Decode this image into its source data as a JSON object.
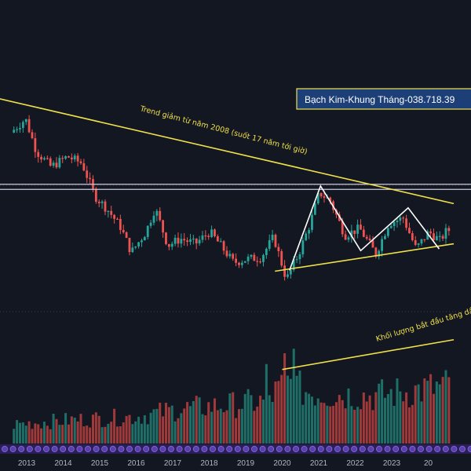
{
  "chart_data": {
    "type": "candlestick",
    "title": "Bạch Kim-Khung Tháng-038.718.39",
    "x_tick_labels": [
      "2013",
      "2014",
      "2015",
      "2016",
      "2017",
      "2018",
      "2019",
      "2020",
      "2021",
      "2022",
      "2023",
      "20"
    ],
    "annotations": {
      "downtrend": "Trend giảm từ năm 2008 (suốt 17 năm tới giờ)",
      "volume": "Khối lượng bắt đầu tăng dầ"
    },
    "ylim": [
      520,
      1850
    ],
    "grid": false,
    "colors": {
      "background": "#131722",
      "up": "#26a69a",
      "down": "#ef5350",
      "volume_up": "#1e6f68",
      "volume_down": "#a03a3a",
      "trendline": "#f0e04a",
      "pattern": "#ffffff",
      "support_lines": "#c9cbe0",
      "title_border": "#f0e04a",
      "title_bg": "#1c3f78"
    },
    "price_path": [
      {
        "year": 2012.65,
        "price": 1580
      },
      {
        "year": 2013.05,
        "price": 1660
      },
      {
        "year": 2013.35,
        "price": 1470
      },
      {
        "year": 2013.75,
        "price": 1380
      },
      {
        "year": 2014.2,
        "price": 1440
      },
      {
        "year": 2014.6,
        "price": 1400
      },
      {
        "year": 2014.95,
        "price": 1210
      },
      {
        "year": 2015.3,
        "price": 1130
      },
      {
        "year": 2015.65,
        "price": 1030
      },
      {
        "year": 2015.95,
        "price": 880
      },
      {
        "year": 2016.35,
        "price": 1000
      },
      {
        "year": 2016.6,
        "price": 1140
      },
      {
        "year": 2016.95,
        "price": 920
      },
      {
        "year": 2017.3,
        "price": 960
      },
      {
        "year": 2017.7,
        "price": 930
      },
      {
        "year": 2018.1,
        "price": 1000
      },
      {
        "year": 2018.4,
        "price": 920
      },
      {
        "year": 2018.75,
        "price": 820
      },
      {
        "year": 2019.1,
        "price": 840
      },
      {
        "year": 2019.5,
        "price": 850
      },
      {
        "year": 2019.85,
        "price": 970
      },
      {
        "year": 2020.2,
        "price": 720
      },
      {
        "year": 2020.55,
        "price": 880
      },
      {
        "year": 2020.85,
        "price": 1050
      },
      {
        "year": 2021.1,
        "price": 1230
      },
      {
        "year": 2021.4,
        "price": 1180
      },
      {
        "year": 2021.8,
        "price": 980
      },
      {
        "year": 2022.2,
        "price": 1020
      },
      {
        "year": 2022.65,
        "price": 870
      },
      {
        "year": 2023.0,
        "price": 1050
      },
      {
        "year": 2023.4,
        "price": 1080
      },
      {
        "year": 2023.75,
        "price": 900
      },
      {
        "year": 2024.1,
        "price": 1000
      },
      {
        "year": 2024.4,
        "price": 950
      },
      {
        "year": 2024.6,
        "price": 1010
      }
    ],
    "volume_profile": [
      {
        "year": 2012.65,
        "level": 0.25
      },
      {
        "year": 2014.0,
        "level": 0.3
      },
      {
        "year": 2016.0,
        "level": 0.35
      },
      {
        "year": 2017.2,
        "level": 0.45
      },
      {
        "year": 2018.5,
        "level": 0.5
      },
      {
        "year": 2019.5,
        "level": 0.55
      },
      {
        "year": 2020.2,
        "level": 0.8
      },
      {
        "year": 2020.5,
        "level": 0.7
      },
      {
        "year": 2021.0,
        "level": 0.65
      },
      {
        "year": 2022.5,
        "level": 0.62
      },
      {
        "year": 2023.5,
        "level": 0.68
      },
      {
        "year": 2024.6,
        "level": 0.75
      }
    ],
    "volume_spikes": [
      {
        "year": 2020.05,
        "level": 1.0
      },
      {
        "year": 2020.3,
        "level": 1.05
      },
      {
        "year": 2019.55,
        "level": 0.88
      }
    ],
    "trendline_downtrend": [
      {
        "year": 2012.0,
        "price": 1790
      },
      {
        "year": 2024.7,
        "price": 1165
      }
    ],
    "trendline_support": [
      {
        "year": 2019.8,
        "price": 770
      },
      {
        "year": 2024.7,
        "price": 930
      }
    ],
    "trendline_volume": [
      {
        "year": 2020.0,
        "level": 0.82
      },
      {
        "year": 2024.7,
        "level": 1.15
      }
    ],
    "support_levels": [
      1278,
      1248
    ],
    "pattern_path": [
      {
        "year": 2020.2,
        "price": 775
      },
      {
        "year": 2021.05,
        "price": 1268
      },
      {
        "year": 2022.15,
        "price": 890
      },
      {
        "year": 2023.45,
        "price": 1140
      },
      {
        "year": 2024.3,
        "price": 900
      }
    ]
  }
}
